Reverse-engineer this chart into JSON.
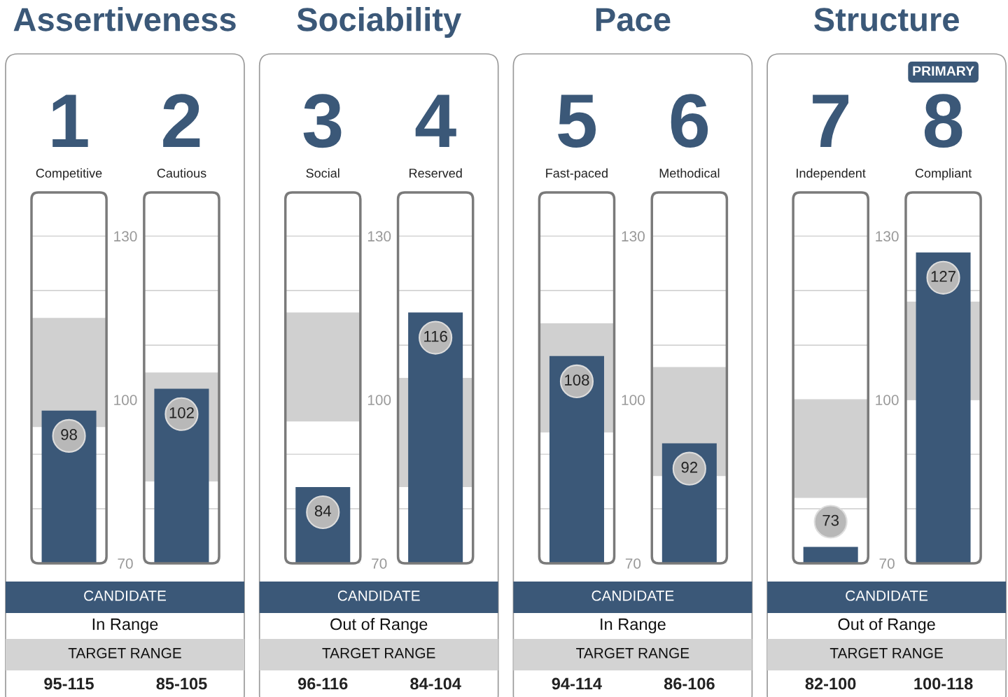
{
  "chart_data": [
    {
      "type": "bar",
      "title": "Assertiveness",
      "categories": [
        "Competitive",
        "Cautious"
      ],
      "ylim": [
        70,
        138
      ],
      "yticks": [
        70,
        {
          "value": 80,
          "label": null
        },
        {
          "value": 90,
          "label": null
        },
        100,
        {
          "value": 110,
          "label": null
        },
        {
          "value": 120,
          "label": null
        },
        130
      ],
      "grid": "y",
      "series": [
        {
          "color": "#d0d0d0",
          "base": [
            95,
            85
          ],
          "values": [
            20,
            20
          ],
          "value_labels": [
            "95-115",
            "85-105"
          ]
        },
        {
          "color": "#3b5878",
          "values": [
            98,
            102
          ],
          "value_labels": [
            "98",
            "102"
          ]
        }
      ],
      "annotations": [
        "1",
        "2",
        "CANDIDATE",
        "In Range",
        "TARGET RANGE"
      ]
    },
    {
      "type": "bar",
      "title": "Sociability",
      "categories": [
        "Social",
        "Reserved"
      ],
      "ylim": [
        70,
        138
      ],
      "yticks": [
        70,
        {
          "value": 80,
          "label": null
        },
        {
          "value": 90,
          "label": null
        },
        100,
        {
          "value": 110,
          "label": null
        },
        {
          "value": 120,
          "label": null
        },
        130
      ],
      "grid": "y",
      "series": [
        {
          "color": "#d0d0d0",
          "base": [
            96,
            84
          ],
          "values": [
            20,
            20
          ],
          "value_labels": [
            "96-116",
            "84-104"
          ]
        },
        {
          "color": "#3b5878",
          "values": [
            84,
            116
          ],
          "value_labels": [
            "84",
            "116"
          ]
        }
      ],
      "annotations": [
        "3",
        "4",
        "CANDIDATE",
        "Out of Range",
        "TARGET RANGE"
      ]
    },
    {
      "type": "bar",
      "title": "Pace",
      "categories": [
        "Fast-paced",
        "Methodical"
      ],
      "ylim": [
        70,
        138
      ],
      "yticks": [
        70,
        {
          "value": 80,
          "label": null
        },
        {
          "value": 90,
          "label": null
        },
        100,
        {
          "value": 110,
          "label": null
        },
        {
          "value": 120,
          "label": null
        },
        130
      ],
      "grid": "y",
      "series": [
        {
          "color": "#d0d0d0",
          "base": [
            94,
            86
          ],
          "values": [
            20,
            20
          ],
          "value_labels": [
            "94-114",
            "86-106"
          ]
        },
        {
          "color": "#3b5878",
          "values": [
            108,
            92
          ],
          "value_labels": [
            "108",
            "92"
          ]
        }
      ],
      "annotations": [
        "5",
        "6",
        "CANDIDATE",
        "In Range",
        "TARGET RANGE"
      ]
    },
    {
      "type": "bar",
      "title": "Structure",
      "categories": [
        "Independent",
        "Compliant"
      ],
      "ylim": [
        70,
        138
      ],
      "yticks": [
        70,
        {
          "value": 80,
          "label": null
        },
        {
          "value": 90,
          "label": null
        },
        100,
        {
          "value": 110,
          "label": null
        },
        {
          "value": 120,
          "label": null
        },
        130
      ],
      "grid": "y",
      "series": [
        {
          "color": "#d0d0d0",
          "base": [
            82,
            100
          ],
          "values": [
            18,
            18
          ],
          "value_labels": [
            "82-100",
            "100-118"
          ]
        },
        {
          "color": "#3b5878",
          "values": [
            73,
            127
          ],
          "value_labels": [
            "73",
            "127"
          ]
        }
      ],
      "annotations": [
        "7",
        "8",
        "CANDIDATE",
        "Out of Range",
        "TARGET RANGE",
        "PRIMARY"
      ]
    }
  ]
}
